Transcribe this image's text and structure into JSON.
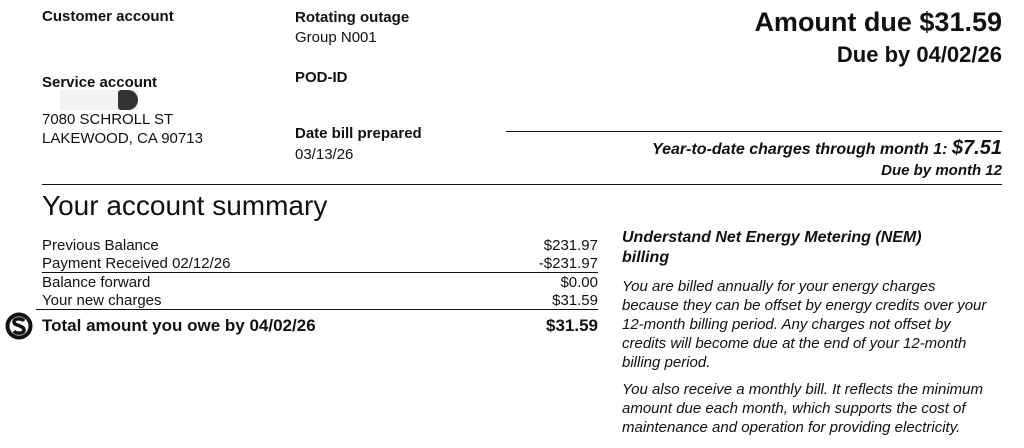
{
  "customer_account": {
    "label": "Customer account"
  },
  "service_account": {
    "label": "Service account",
    "address_line1": "7080 SCHROLL ST",
    "address_line2": "LAKEWOOD, CA 90713"
  },
  "rotating_outage": {
    "label": "Rotating outage",
    "value": "Group N001"
  },
  "pod_id": {
    "label": "POD-ID"
  },
  "date_bill_prepared": {
    "label": "Date bill prepared",
    "value": "03/13/26"
  },
  "amount_due": {
    "text": "Amount due $31.59",
    "due_by": "Due by 04/02/26"
  },
  "ytd": {
    "text": "Year-to-date charges through month  1:",
    "amount": "$7.51",
    "due": "Due by month 12"
  },
  "summary": {
    "title": "Your account summary",
    "rows": [
      {
        "label": "Previous Balance",
        "amount": "$231.97"
      },
      {
        "label": "Payment Received 02/12/26",
        "amount": "-$231.97"
      },
      {
        "label": "Balance forward",
        "amount": "$0.00"
      },
      {
        "label": "Your new charges",
        "amount": "$31.59"
      }
    ],
    "total": {
      "label": "Total amount you owe by 04/02/26",
      "amount": "$31.59",
      "icon": "dollar-circle-icon"
    }
  },
  "nem": {
    "title": "Understand Net Energy Metering (NEM) billing",
    "p1": "You are billed annually for your energy charges because they can be offset by energy credits over your 12-month billing period. Any charges not offset by credits will become due at the end of your 12-month billing period.",
    "p2": "You also receive a monthly bill. It reflects the minimum amount due each month, which supports the cost of maintenance and operation for providing electricity."
  }
}
